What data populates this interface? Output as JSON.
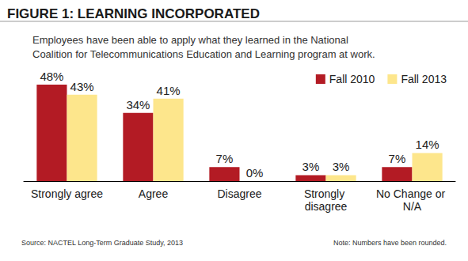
{
  "chart_data": {
    "type": "bar",
    "title": "FIGURE 1: LEARNING INCORPORATED",
    "subtitle": "Employees have been able to apply what they learned in the National Coalition for Telecommunications Education and Learning program at work.",
    "source": "Source: NACTEL Long-Term Graduate Study, 2013",
    "note": "Note: Numbers have been rounded.",
    "categories": [
      "Strongly agree",
      "Agree",
      "Disagree",
      "Strongly disagree",
      "No Change or N/A"
    ],
    "series": [
      {
        "name": "Fall 2010",
        "color": "#b31b24",
        "values": [
          48,
          34,
          7,
          3,
          7
        ],
        "value_labels": [
          "48%",
          "34%",
          "7%",
          "3%",
          "7%"
        ]
      },
      {
        "name": "Fall 2013",
        "color": "#fde68c",
        "values": [
          43,
          41,
          0,
          3,
          14
        ],
        "value_labels": [
          "43%",
          "41%",
          "0%",
          "3%",
          "14%"
        ]
      }
    ],
    "ylim": [
      0,
      50
    ],
    "grid": false,
    "legend": "top-right",
    "data_labels": true,
    "tick_labels": "x"
  }
}
